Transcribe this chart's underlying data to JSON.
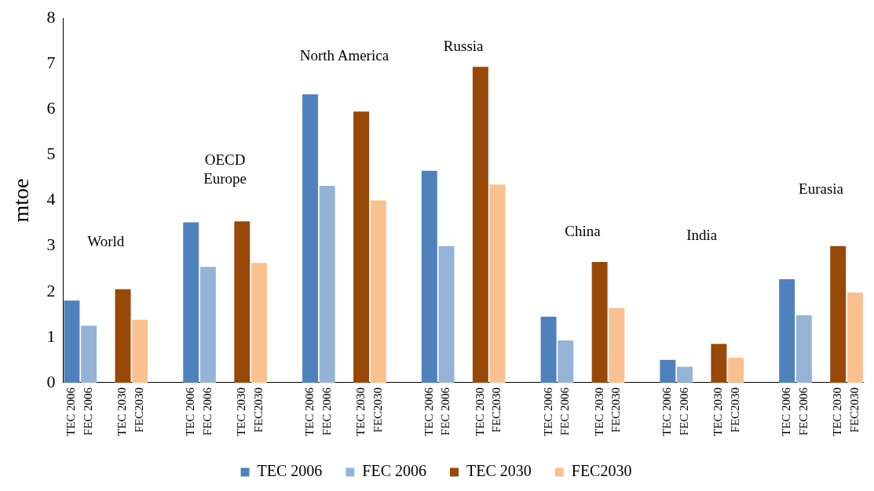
{
  "chart_data": {
    "type": "bar",
    "ylabel": "mtoe",
    "categories": [
      "TEC 2006",
      "FEC 2006",
      null,
      "TEC 2030",
      "FEC2030",
      null,
      null,
      "TEC 2006",
      "FEC 2006",
      null,
      "TEC 2030",
      "FEC2030",
      null,
      null,
      "TEC 2006",
      "FEC 2006",
      null,
      "TEC 2030",
      "FEC2030",
      null,
      null,
      "TEC 2006",
      "FEC 2006",
      null,
      "TEC 2030",
      "FEC2030",
      null,
      null,
      "TEC 2006",
      "FEC 2006",
      null,
      "TEC 2030",
      "FEC2030",
      null,
      null,
      "TEC 2006",
      "FEC 2006",
      null,
      "TEC 2030",
      "FEC2030",
      null,
      null,
      "TEC 2006",
      "FEC 2006",
      null,
      "TEC 2030",
      "FEC2030"
    ],
    "series": [
      {
        "name": "TEC 2006",
        "color": "#4f81bd",
        "values": [
          1.8,
          null,
          null,
          null,
          null,
          null,
          null,
          3.52,
          null,
          null,
          null,
          null,
          null,
          null,
          6.33,
          null,
          null,
          null,
          null,
          null,
          null,
          4.65,
          null,
          null,
          null,
          null,
          null,
          null,
          1.45,
          null,
          null,
          null,
          null,
          null,
          null,
          0.5,
          null,
          null,
          null,
          null,
          null,
          null,
          2.27,
          null,
          null,
          null,
          null
        ]
      },
      {
        "name": "FEC 2006",
        "color": "#95b3d7",
        "values": [
          null,
          1.25,
          null,
          null,
          null,
          null,
          null,
          null,
          2.54,
          null,
          null,
          null,
          null,
          null,
          null,
          4.32,
          null,
          null,
          null,
          null,
          null,
          null,
          3.0,
          null,
          null,
          null,
          null,
          null,
          null,
          0.93,
          null,
          null,
          null,
          null,
          null,
          null,
          0.35,
          null,
          null,
          null,
          null,
          null,
          null,
          1.48,
          null,
          null,
          null
        ]
      },
      {
        "name": "TEC 2030",
        "color": "#984807",
        "values": [
          null,
          null,
          null,
          2.05,
          null,
          null,
          null,
          null,
          null,
          null,
          3.54,
          null,
          null,
          null,
          null,
          null,
          null,
          5.95,
          null,
          null,
          null,
          null,
          null,
          null,
          6.93,
          null,
          null,
          null,
          null,
          null,
          null,
          2.65,
          null,
          null,
          null,
          null,
          null,
          null,
          0.85,
          null,
          null,
          null,
          null,
          null,
          null,
          3.0,
          null
        ]
      },
      {
        "name": "FEC2030",
        "color": "#fac090",
        "values": [
          null,
          null,
          null,
          null,
          1.38,
          null,
          null,
          null,
          null,
          null,
          null,
          2.63,
          null,
          null,
          null,
          null,
          null,
          null,
          4.0,
          null,
          null,
          null,
          null,
          null,
          null,
          4.35,
          null,
          null,
          null,
          null,
          null,
          null,
          1.64,
          null,
          null,
          null,
          null,
          null,
          null,
          0.55,
          null,
          null,
          null,
          null,
          null,
          null,
          1.98
        ]
      }
    ],
    "ylim": [
      0,
      8
    ],
    "yticks": [
      0,
      1,
      2,
      3,
      4,
      5,
      6,
      7,
      8
    ],
    "grid": false,
    "legend": "bottom",
    "annotations": [
      "World",
      "OECD\nEurope",
      "North America",
      "Russia",
      "China",
      "India",
      "Eurasia"
    ]
  }
}
